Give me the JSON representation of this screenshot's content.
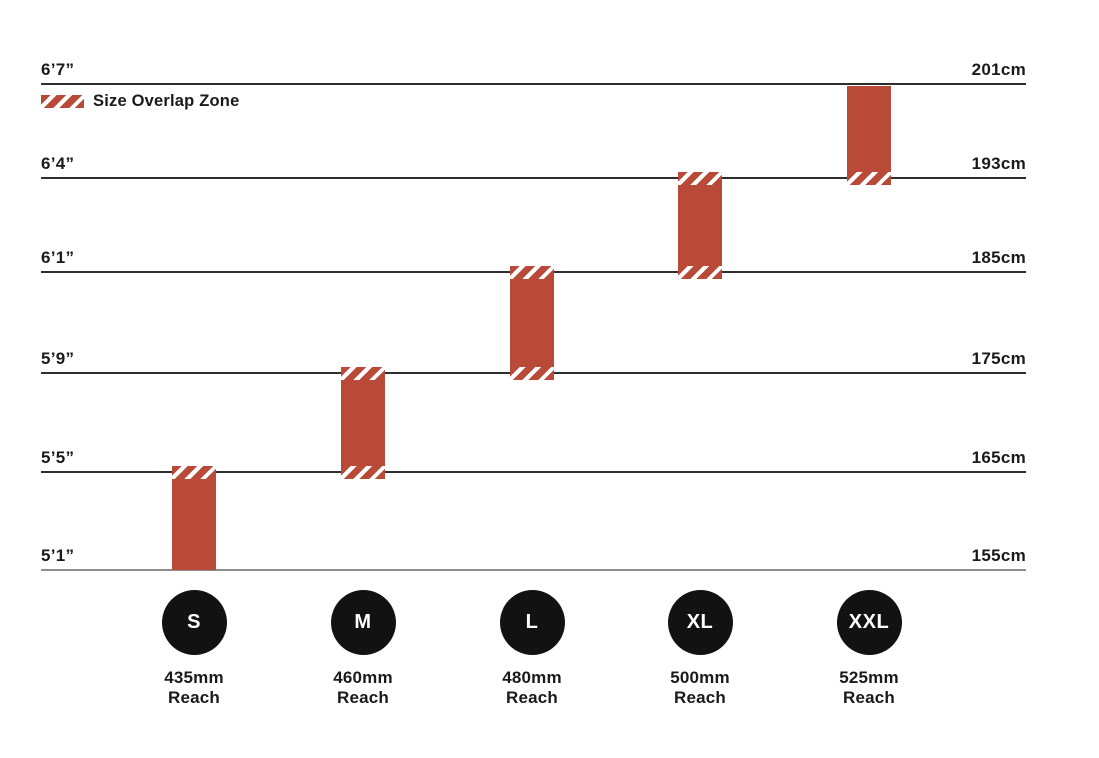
{
  "legend": {
    "label": "Size Overlap Zone"
  },
  "colors": {
    "bar_red": "#B84A37",
    "hatch_stripe_white": "#FFFFFF",
    "gridline_dark": "#2E2E2E",
    "gridline_baseline_gray": "#8E8E8E",
    "text_black": "#1A1A1A",
    "circle_black": "#121212",
    "circle_letter_white": "#FFFFFF",
    "background": "#FFFFFF"
  },
  "chart_data": {
    "type": "bar",
    "subtype": "floating-range-columns",
    "title": "",
    "legend_entries": [
      "Size Overlap Zone"
    ],
    "legend_position": "top-left",
    "grid": "horizontal-lines",
    "y_axis_left": {
      "unit": "feet-inches",
      "tick_labels": [
        "6’7”",
        "6’4”",
        "6’1”",
        "5’9”",
        "5’5”",
        "5’1”"
      ]
    },
    "y_axis_right": {
      "unit": "centimeters",
      "tick_labels": [
        "201cm",
        "193cm",
        "185cm",
        "175cm",
        "165cm",
        "155cm"
      ]
    },
    "gridlines": [
      {
        "cm": 201,
        "ft_label": "6’7”",
        "cm_label": "201cm"
      },
      {
        "cm": 193,
        "ft_label": "6’4”",
        "cm_label": "193cm"
      },
      {
        "cm": 185,
        "ft_label": "6’1”",
        "cm_label": "185cm"
      },
      {
        "cm": 175,
        "ft_label": "5’9”",
        "cm_label": "175cm"
      },
      {
        "cm": 165,
        "ft_label": "5’5”",
        "cm_label": "165cm"
      },
      {
        "cm": 155,
        "ft_label": "5’1”",
        "cm_label": "155cm"
      }
    ],
    "x_categories": [
      "S",
      "M",
      "L",
      "XL",
      "XXL"
    ],
    "reach_suffix": "Reach",
    "series": [
      {
        "size": "S",
        "reach": "435mm",
        "range_cm": [
          155,
          165
        ],
        "range_height": [
          "5’1”",
          "5’5”"
        ],
        "overlap_top": true,
        "overlap_bottom": false
      },
      {
        "size": "M",
        "reach": "460mm",
        "range_cm": [
          165,
          175
        ],
        "range_height": [
          "5’5”",
          "5’9”"
        ],
        "overlap_top": true,
        "overlap_bottom": true
      },
      {
        "size": "L",
        "reach": "480mm",
        "range_cm": [
          175,
          185
        ],
        "range_height": [
          "5’9”",
          "6’1”"
        ],
        "overlap_top": true,
        "overlap_bottom": true
      },
      {
        "size": "XL",
        "reach": "500mm",
        "range_cm": [
          185,
          193
        ],
        "range_height": [
          "6’1”",
          "6’4”"
        ],
        "overlap_top": true,
        "overlap_bottom": true
      },
      {
        "size": "XXL",
        "reach": "525mm",
        "range_cm": [
          193,
          201
        ],
        "range_height": [
          "6’4”",
          "6’7”"
        ],
        "overlap_top": false,
        "overlap_bottom": true
      }
    ]
  }
}
